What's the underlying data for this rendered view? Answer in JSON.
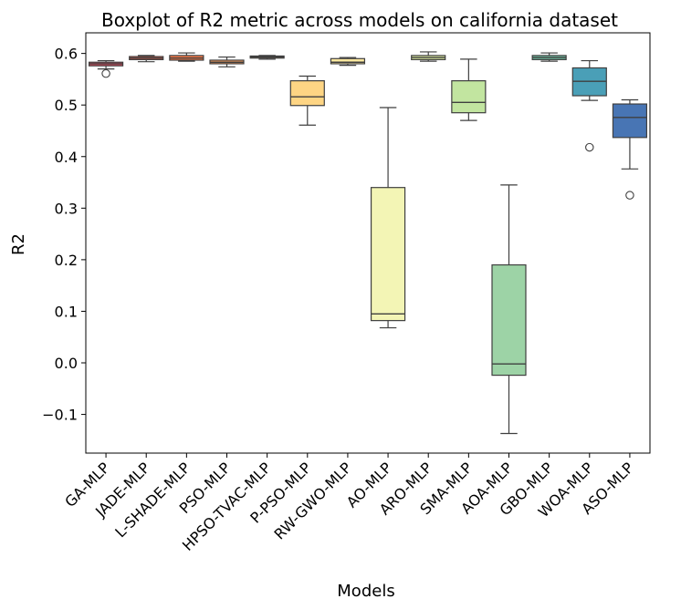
{
  "chart_data": {
    "type": "boxplot",
    "title": "Boxplot of R2 metric across models on california dataset",
    "xlabel": "Models",
    "ylabel": "R2",
    "ylim": [
      -0.175,
      0.64
    ],
    "yticks": [
      -0.1,
      0.0,
      0.1,
      0.2,
      0.3,
      0.4,
      0.5,
      0.6
    ],
    "ytick_labels": [
      "−0.1",
      "0.0",
      "0.1",
      "0.2",
      "0.3",
      "0.4",
      "0.5",
      "0.6"
    ],
    "grid": false,
    "legend": "none",
    "categories": [
      "GA-MLP",
      "JADE-MLP",
      "L-SHADE-MLP",
      "PSO-MLP",
      "HPSO-TVAC-MLP",
      "P-PSO-MLP",
      "RW-GWO-MLP",
      "AO-MLP",
      "ARO-MLP",
      "SMA-MLP",
      "AOA-MLP",
      "GBO-MLP",
      "WOA-MLP",
      "ASO-MLP"
    ],
    "boxes": [
      {
        "whisker_low": 0.57,
        "q1": 0.576,
        "median": 0.58,
        "q3": 0.583,
        "whisker_high": 0.586,
        "outliers": [
          0.561
        ],
        "color": "#d9485b"
      },
      {
        "whisker_low": 0.584,
        "q1": 0.588,
        "median": 0.591,
        "q3": 0.594,
        "whisker_high": 0.596,
        "outliers": [],
        "color": "#ea5f4a"
      },
      {
        "whisker_low": 0.585,
        "q1": 0.587,
        "median": 0.591,
        "q3": 0.596,
        "whisker_high": 0.601,
        "outliers": [],
        "color": "#f57a48"
      },
      {
        "whisker_low": 0.574,
        "q1": 0.58,
        "median": 0.583,
        "q3": 0.587,
        "whisker_high": 0.593,
        "outliers": [],
        "color": "#fb9d59"
      },
      {
        "whisker_low": 0.589,
        "q1": 0.591,
        "median": 0.593,
        "q3": 0.595,
        "whisker_high": 0.596,
        "outliers": [],
        "color": "#fdb86a"
      },
      {
        "whisker_low": 0.461,
        "q1": 0.499,
        "median": 0.516,
        "q3": 0.547,
        "whisker_high": 0.556,
        "outliers": [],
        "color": "#fed584"
      },
      {
        "whisker_low": 0.577,
        "q1": 0.58,
        "median": 0.583,
        "q3": 0.59,
        "whisker_high": 0.592,
        "outliers": [],
        "color": "#fee89f"
      },
      {
        "whisker_low": 0.068,
        "q1": 0.082,
        "median": 0.095,
        "q3": 0.34,
        "whisker_high": 0.495,
        "outliers": [],
        "color": "#f3f5b5"
      },
      {
        "whisker_low": 0.585,
        "q1": 0.588,
        "median": 0.592,
        "q3": 0.596,
        "whisker_high": 0.603,
        "outliers": [],
        "color": "#e2f3a4"
      },
      {
        "whisker_low": 0.47,
        "q1": 0.485,
        "median": 0.505,
        "q3": 0.547,
        "whisker_high": 0.589,
        "outliers": [],
        "color": "#c2e5a0"
      },
      {
        "whisker_low": -0.137,
        "q1": -0.024,
        "median": -0.002,
        "q3": 0.19,
        "whisker_high": 0.345,
        "outliers": [],
        "color": "#9dd3a6"
      },
      {
        "whisker_low": 0.585,
        "q1": 0.588,
        "median": 0.592,
        "q3": 0.596,
        "whisker_high": 0.601,
        "outliers": [],
        "color": "#72c3a6"
      },
      {
        "whisker_low": 0.509,
        "q1": 0.518,
        "median": 0.546,
        "q3": 0.572,
        "whisker_high": 0.586,
        "outliers": [
          0.418
        ],
        "color": "#4a9fb7"
      },
      {
        "whisker_low": 0.376,
        "q1": 0.437,
        "median": 0.476,
        "q3": 0.502,
        "whisker_high": 0.51,
        "outliers": [
          0.325
        ],
        "color": "#4875b4"
      }
    ]
  }
}
